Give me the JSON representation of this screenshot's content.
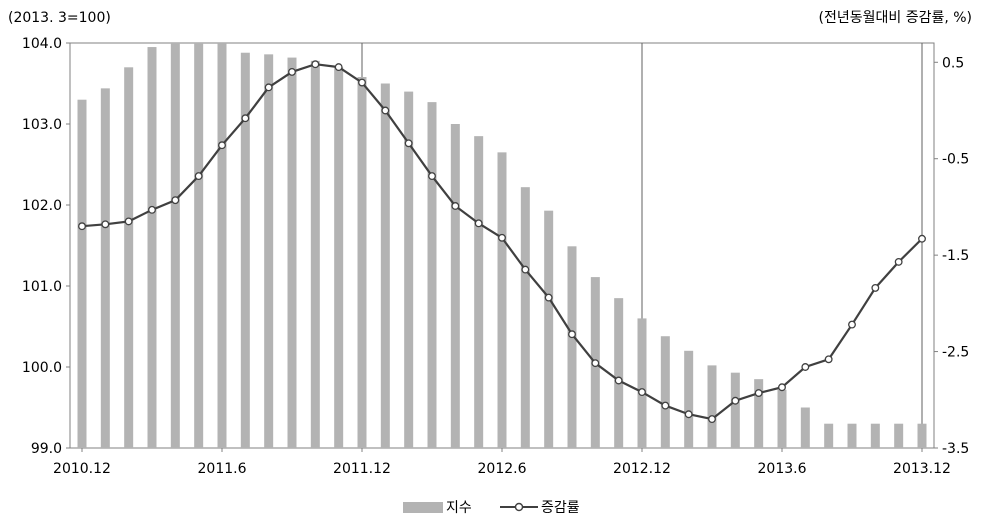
{
  "chart_data": {
    "type": "bar+line",
    "left_unit_label": "(2013. 3=100)",
    "right_unit_label": "(전년동월대비 증감률,  %)",
    "x_tick_labels": [
      "2010.12",
      "2011.6",
      "2011.12",
      "2012.6",
      "2012.12",
      "2013.6",
      "2013.12"
    ],
    "y_left_ticks": [
      "104.0",
      "103.0",
      "102.0",
      "101.0",
      "100.0",
      "99.0"
    ],
    "y_right_ticks": [
      "0.5",
      "-0.5",
      "-1.5",
      "-2.5",
      "-3.5"
    ],
    "y_left_range": [
      99.0,
      104.0
    ],
    "y_right_range": [
      -3.5,
      0.7
    ],
    "months": [
      "2010.12",
      "2011.1",
      "2011.2",
      "2011.3",
      "2011.4",
      "2011.5",
      "2011.6",
      "2011.7",
      "2011.8",
      "2011.9",
      "2011.10",
      "2011.11",
      "2011.12",
      "2012.1",
      "2012.2",
      "2012.3",
      "2012.4",
      "2012.5",
      "2012.6",
      "2012.7",
      "2012.8",
      "2012.9",
      "2012.10",
      "2012.11",
      "2012.12",
      "2013.1",
      "2013.2",
      "2013.3",
      "2013.4",
      "2013.5",
      "2013.6",
      "2013.7",
      "2013.8",
      "2013.9",
      "2013.10",
      "2013.11",
      "2013.12"
    ],
    "series": [
      {
        "name": "지수",
        "type": "bar",
        "axis": "left",
        "color": "#b3b3b3",
        "values": [
          103.3,
          103.44,
          103.7,
          103.95,
          104.0,
          104.0,
          103.99,
          103.88,
          103.86,
          103.82,
          103.78,
          103.7,
          103.58,
          103.5,
          103.4,
          103.27,
          103.0,
          102.85,
          102.65,
          102.22,
          101.93,
          101.49,
          101.11,
          100.85,
          100.6,
          100.38,
          100.2,
          100.02,
          99.93,
          99.85,
          99.72,
          99.5,
          99.3,
          99.3,
          99.3,
          99.3,
          99.3
        ]
      },
      {
        "name": "증감률",
        "type": "line",
        "axis": "right",
        "color": "#404040",
        "values": [
          -1.2,
          -1.18,
          -1.15,
          -1.03,
          -0.93,
          -0.68,
          -0.36,
          -0.08,
          0.24,
          0.4,
          0.48,
          0.45,
          0.29,
          0.0,
          -0.34,
          -0.68,
          -0.99,
          -1.17,
          -1.32,
          -1.65,
          -1.94,
          -2.32,
          -2.62,
          -2.8,
          -2.92,
          -3.06,
          -3.15,
          -3.2,
          -3.01,
          -2.93,
          -2.87,
          -2.66,
          -2.58,
          -2.22,
          -1.84,
          -1.57,
          -1.33
        ]
      }
    ],
    "legend_position": "bottom-center",
    "grid": false
  }
}
